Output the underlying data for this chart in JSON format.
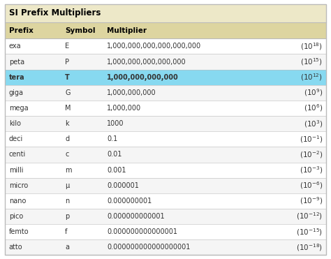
{
  "title": "SI Prefix Multipliers",
  "headers": [
    "Prefix",
    "Symbol",
    "Multiplier",
    ""
  ],
  "rows": [
    [
      "exa",
      "E",
      "1,000,000,000,000,000,000",
      "$(10^{18})$"
    ],
    [
      "peta",
      "P",
      "1,000,000,000,000,000",
      "$(10^{15})$"
    ],
    [
      "tera",
      "T",
      "1,000,000,000,000",
      "$(10^{12})$"
    ],
    [
      "giga",
      "G",
      "1,000,000,000",
      "$(10^{9})$"
    ],
    [
      "mega",
      "M",
      "1,000,000",
      "$(10^{6})$"
    ],
    [
      "kilo",
      "k",
      "1000",
      "$(10^{3})$"
    ],
    [
      "deci",
      "d",
      "0.1",
      "$(10^{-1})$"
    ],
    [
      "centi",
      "c",
      "0.01",
      "$(10^{-2})$"
    ],
    [
      "milli",
      "m",
      "0.001",
      "$(10^{-3})$"
    ],
    [
      "micro",
      "μ",
      "0.000001",
      "$(10^{-6})$"
    ],
    [
      "nano",
      "n",
      "0.000000001",
      "$(10^{-9})$"
    ],
    [
      "pico",
      "p",
      "0.000000000001",
      "$(10^{-12})$"
    ],
    [
      "femto",
      "f",
      "0.000000000000001",
      "$(10^{-15})$"
    ],
    [
      "atto",
      "a",
      "0.000000000000000001",
      "$(10^{-18})$"
    ]
  ],
  "highlighted_row": 2,
  "title_bg": "#ede8c8",
  "header_bg": "#ddd5a0",
  "highlight_color": "#87d9f0",
  "row_bg": "#ffffff",
  "row_alt_bg": "#f5f5f5",
  "border_color": "#bbbbbb",
  "title_color": "#000000",
  "text_color": "#333333",
  "title_fontsize": 8.5,
  "header_fontsize": 7.5,
  "cell_fontsize": 7.0,
  "figwidth": 4.74,
  "figheight": 3.71,
  "dpi": 100
}
